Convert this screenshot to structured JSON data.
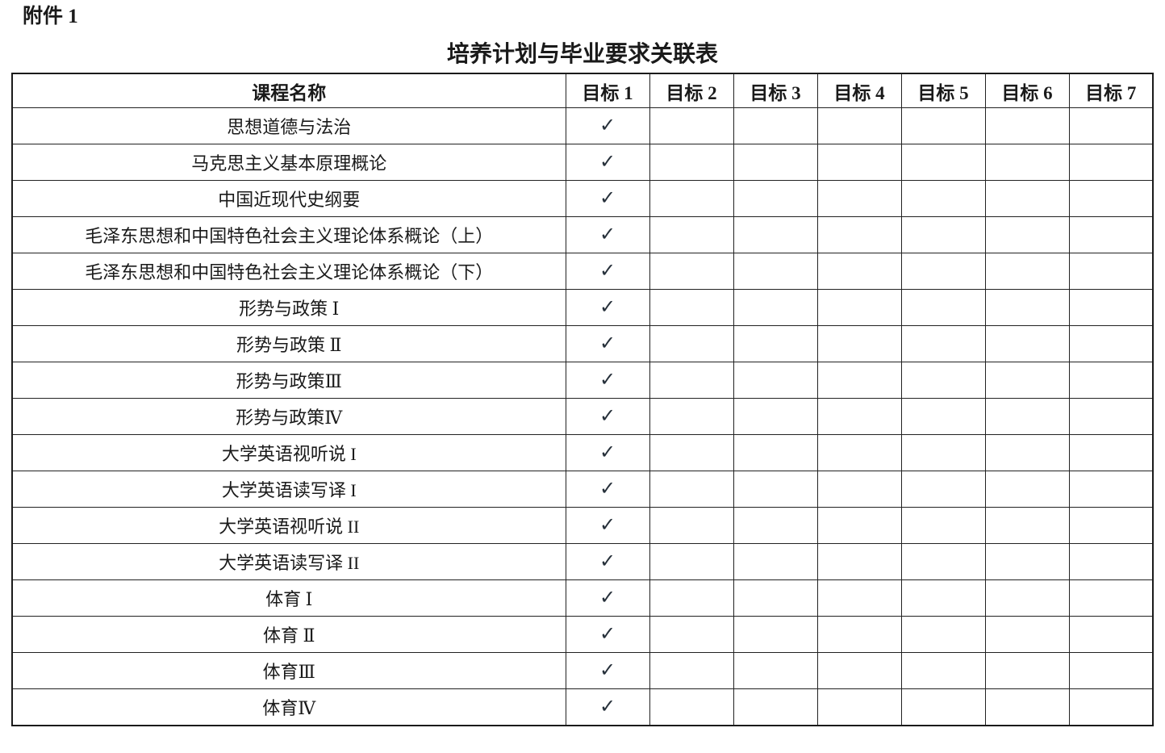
{
  "page": {
    "attachment_label": "附件 1",
    "title": "培养计划与毕业要求关联表"
  },
  "table": {
    "course_header": "课程名称",
    "goal_headers": [
      "目标 1",
      "目标 2",
      "目标 3",
      "目标 4",
      "目标 5",
      "目标 6",
      "目标 7"
    ],
    "check_glyph": "✓",
    "rows": [
      {
        "course": "思想道德与法治",
        "checks": [
          1,
          0,
          0,
          0,
          0,
          0,
          0
        ]
      },
      {
        "course": "马克思主义基本原理概论",
        "checks": [
          1,
          0,
          0,
          0,
          0,
          0,
          0
        ]
      },
      {
        "course": "中国近现代史纲要",
        "checks": [
          1,
          0,
          0,
          0,
          0,
          0,
          0
        ]
      },
      {
        "course": "毛泽东思想和中国特色社会主义理论体系概论（上）",
        "checks": [
          1,
          0,
          0,
          0,
          0,
          0,
          0
        ]
      },
      {
        "course": "毛泽东思想和中国特色社会主义理论体系概论（下）",
        "checks": [
          1,
          0,
          0,
          0,
          0,
          0,
          0
        ]
      },
      {
        "course": "形势与政策 Ⅰ",
        "checks": [
          1,
          0,
          0,
          0,
          0,
          0,
          0
        ]
      },
      {
        "course": "形势与政策 Ⅱ",
        "checks": [
          1,
          0,
          0,
          0,
          0,
          0,
          0
        ]
      },
      {
        "course": "形势与政策Ⅲ",
        "checks": [
          1,
          0,
          0,
          0,
          0,
          0,
          0
        ]
      },
      {
        "course": "形势与政策Ⅳ",
        "checks": [
          1,
          0,
          0,
          0,
          0,
          0,
          0
        ]
      },
      {
        "course": "大学英语视听说 I",
        "checks": [
          1,
          0,
          0,
          0,
          0,
          0,
          0
        ]
      },
      {
        "course": "大学英语读写译 I",
        "checks": [
          1,
          0,
          0,
          0,
          0,
          0,
          0
        ]
      },
      {
        "course": "大学英语视听说 II",
        "checks": [
          1,
          0,
          0,
          0,
          0,
          0,
          0
        ]
      },
      {
        "course": "大学英语读写译 II",
        "checks": [
          1,
          0,
          0,
          0,
          0,
          0,
          0
        ]
      },
      {
        "course": "体育 Ⅰ",
        "checks": [
          1,
          0,
          0,
          0,
          0,
          0,
          0
        ]
      },
      {
        "course": "体育 Ⅱ",
        "checks": [
          1,
          0,
          0,
          0,
          0,
          0,
          0
        ]
      },
      {
        "course": "体育Ⅲ",
        "checks": [
          1,
          0,
          0,
          0,
          0,
          0,
          0
        ]
      },
      {
        "course": "体育Ⅳ",
        "checks": [
          1,
          0,
          0,
          0,
          0,
          0,
          0
        ]
      }
    ]
  },
  "colors": {
    "border": "#222222",
    "text": "#1a1a1a",
    "check": "#26303a"
  }
}
